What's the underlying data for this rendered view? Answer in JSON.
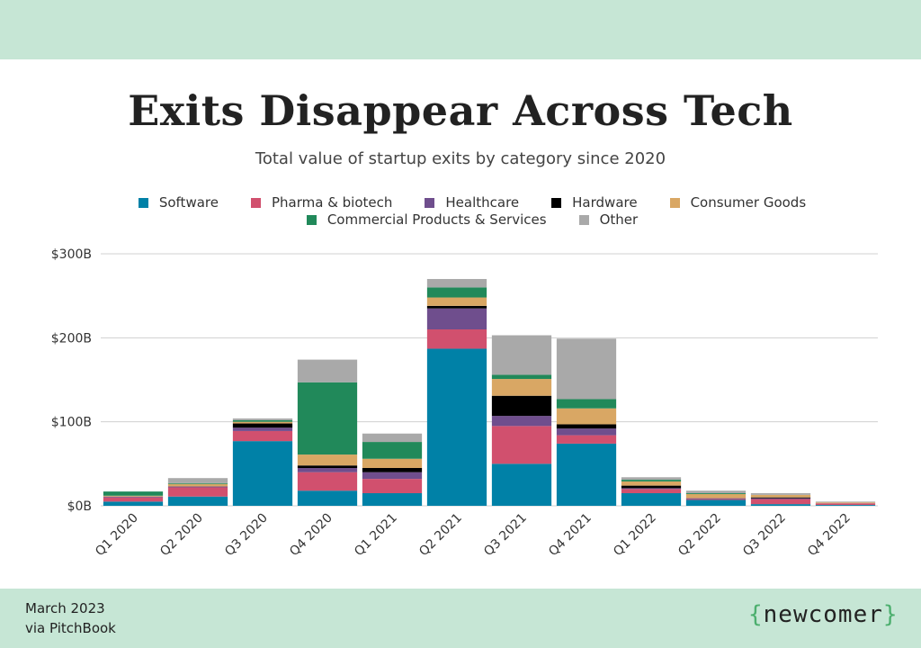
{
  "header": {
    "title": "Exits Disappear Across Tech",
    "subtitle": "Total value of startup exits by category since 2020"
  },
  "footer": {
    "date": "March 2023",
    "source": "via PitchBook",
    "brand": "newcomer"
  },
  "colors": {
    "band": "#c6e6d5",
    "grid": "#d0d0d0"
  },
  "chart_data": {
    "type": "bar",
    "stacked": true,
    "title": "Exits Disappear Across Tech",
    "subtitle": "Total value of startup exits by category since 2020",
    "xlabel": "",
    "ylabel": "",
    "ylim": [
      0,
      300
    ],
    "y_ticks": [
      "$0B",
      "$100B",
      "$200B",
      "$300B"
    ],
    "y_tick_values": [
      0,
      100,
      200,
      300
    ],
    "grid": true,
    "legend_position": "top",
    "categories": [
      "Q1 2020",
      "Q2 2020",
      "Q3 2020",
      "Q4 2020",
      "Q1 2021",
      "Q2 2021",
      "Q3 2021",
      "Q4 2021",
      "Q1 2022",
      "Q2 2022",
      "Q3 2022",
      "Q4 2022"
    ],
    "series": [
      {
        "name": "Software",
        "color": "#0081a7",
        "values": [
          5,
          11,
          77,
          18,
          15,
          187,
          50,
          74,
          15,
          7,
          2,
          1
        ]
      },
      {
        "name": "Pharma & biotech",
        "color": "#d1506e",
        "values": [
          5,
          11,
          12,
          22,
          17,
          23,
          45,
          10,
          5,
          1,
          6,
          2
        ]
      },
      {
        "name": "Healthcare",
        "color": "#6f4e8d",
        "values": [
          1,
          1,
          4,
          5,
          8,
          25,
          12,
          8,
          1,
          1,
          1,
          0
        ]
      },
      {
        "name": "Hardware",
        "color": "#000000",
        "values": [
          0,
          0,
          5,
          3,
          5,
          3,
          24,
          5,
          3,
          0,
          1,
          0
        ]
      },
      {
        "name": "Consumer Goods",
        "color": "#d9a764",
        "values": [
          1,
          3,
          2,
          13,
          11,
          10,
          20,
          19,
          5,
          5,
          3,
          1
        ]
      },
      {
        "name": "Commercial Products & Services",
        "color": "#21895a",
        "values": [
          5,
          1,
          2,
          86,
          20,
          12,
          5,
          11,
          2,
          1,
          0,
          0
        ]
      },
      {
        "name": "Other",
        "color": "#a9a9a9",
        "values": [
          0,
          6,
          2,
          27,
          10,
          10,
          47,
          72,
          3,
          3,
          2,
          1
        ]
      }
    ]
  }
}
